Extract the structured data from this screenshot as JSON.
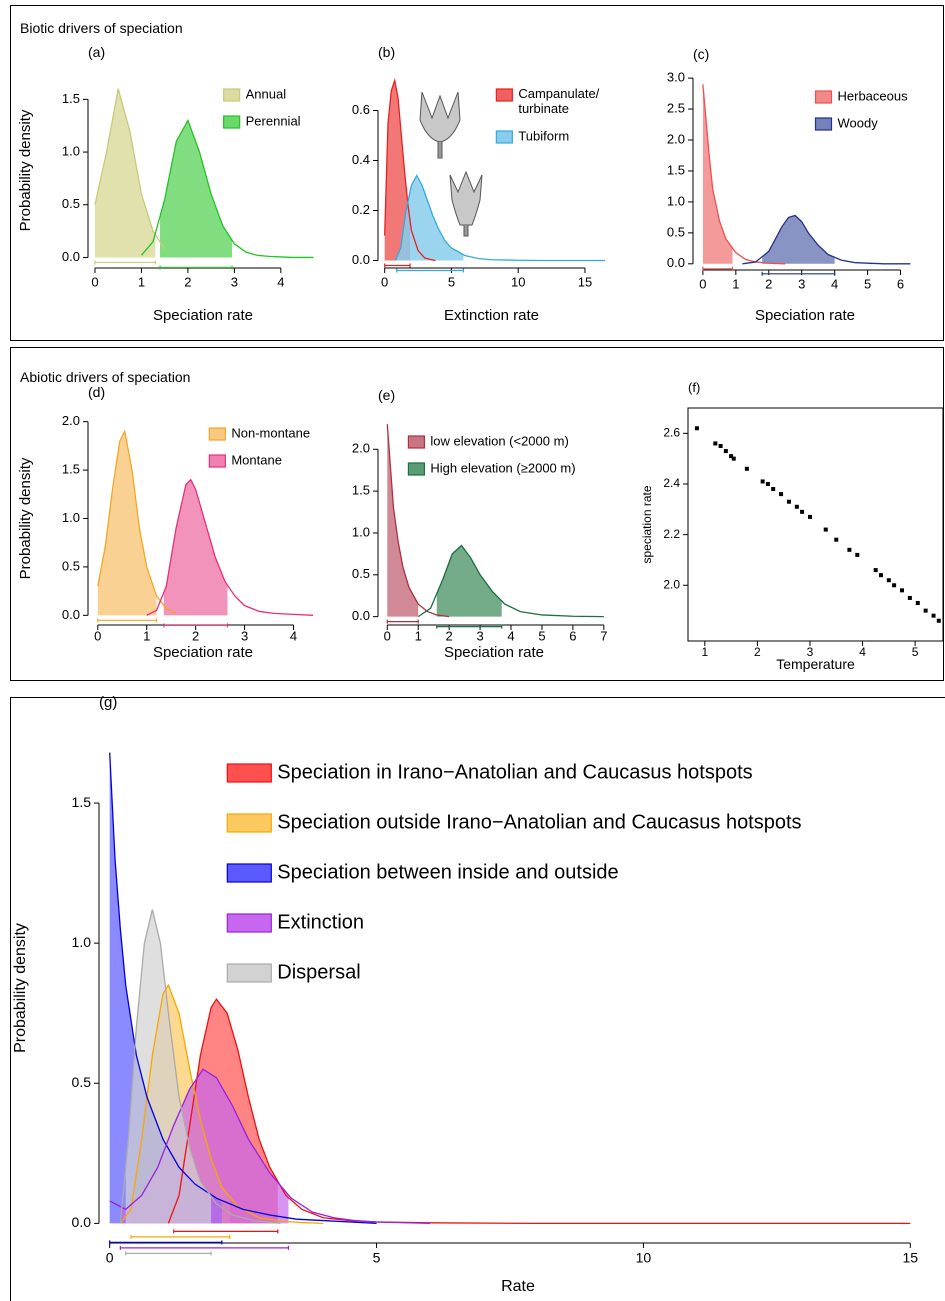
{
  "sections": [
    {
      "title": "Biotic drivers of speciation"
    },
    {
      "title": "Abiotic drivers of speciation"
    }
  ],
  "chart_data": [
    {
      "type": "density",
      "panel_label": "(a)",
      "xlabel": "Speciation rate",
      "ylabel": "Probability density",
      "xlim": [
        -0.15,
        4.8
      ],
      "ylim": [
        -0.1,
        1.75
      ],
      "xticks": [
        0,
        1,
        2,
        3,
        4
      ],
      "yticks": [
        {
          "value": 0,
          "label": "0.0"
        },
        0.5,
        {
          "value": 1,
          "label": "1.0"
        },
        1.5
      ],
      "legend": "top-right",
      "series": [
        {
          "name": "Annual",
          "color": "#c9c97a",
          "fill": "#dcdca0",
          "x": [
            0,
            0.25,
            0.5,
            0.75,
            1,
            1.25,
            1.5
          ],
          "values": [
            0.5,
            1,
            1.6,
            1.2,
            0.6,
            0.25,
            0.08
          ],
          "hpd": [
            0,
            1.3
          ]
        },
        {
          "name": "Perennial",
          "color": "#22c422",
          "fill": "#6ad86a",
          "x": [
            1,
            1.25,
            1.5,
            1.75,
            2,
            2.25,
            2.5,
            2.75,
            3,
            3.25,
            3.5,
            3.75,
            4,
            4.25,
            4.7
          ],
          "values": [
            0.02,
            0.15,
            0.55,
            1.1,
            1.3,
            1,
            0.6,
            0.3,
            0.13,
            0.05,
            0.02,
            0.01,
            0.005,
            0,
            0
          ],
          "hpd": [
            1.4,
            2.95
          ]
        }
      ]
    },
    {
      "type": "density",
      "panel_label": "(b)",
      "xlabel": "Extinction rate",
      "xlim": [
        -0.5,
        16.5
      ],
      "ylim": [
        -0.03,
        0.75
      ],
      "xticks": [
        0,
        5,
        10,
        15
      ],
      "yticks": [
        {
          "value": 0,
          "label": "0.0"
        },
        0.2,
        0.4,
        0.6
      ],
      "legend": "top-right",
      "series": [
        {
          "name": "Campanulate/ turbinate",
          "color": "#e82020",
          "fill": "#f06060",
          "x": [
            0,
            0.25,
            0.5,
            0.75,
            1,
            1.25,
            1.5,
            1.75,
            2,
            2.5,
            3,
            3.5,
            3.8
          ],
          "values": [
            0.1,
            0.55,
            0.68,
            0.72,
            0.65,
            0.5,
            0.35,
            0.22,
            0.12,
            0.04,
            0.01,
            0.003,
            0
          ],
          "hpd": [
            0,
            1.9
          ]
        },
        {
          "name": "Tubiform",
          "color": "#33aadd",
          "fill": "#8accec",
          "x": [
            0.8,
            1.2,
            1.6,
            2,
            2.4,
            2.8,
            3.2,
            3.6,
            4,
            4.5,
            5,
            6,
            7,
            8,
            10,
            12,
            16.5
          ],
          "values": [
            0,
            0.05,
            0.2,
            0.3,
            0.34,
            0.3,
            0.24,
            0.18,
            0.13,
            0.08,
            0.05,
            0.02,
            0.008,
            0.003,
            0.001,
            0,
            0
          ],
          "hpd": [
            0.9,
            5.9
          ]
        }
      ]
    },
    {
      "type": "density",
      "panel_label": "(c)",
      "xlabel": "Speciation rate",
      "xlim": [
        -0.3,
        6.5
      ],
      "ylim": [
        -0.1,
        3.05
      ],
      "xticks": [
        0,
        1,
        2,
        3,
        4,
        5,
        6
      ],
      "yticks": [
        {
          "value": 0,
          "label": "0.0"
        },
        0.5,
        {
          "value": 1,
          "label": "1.0"
        },
        1.5,
        {
          "value": 2,
          "label": "2.0"
        },
        2.5,
        {
          "value": 3,
          "label": "3.0"
        }
      ],
      "legend": "top-right",
      "series": [
        {
          "name": "Herbaceous",
          "color": "#ec5050",
          "fill": "#f28888",
          "x": [
            0,
            0.1,
            0.2,
            0.3,
            0.5,
            0.7,
            1,
            1.3,
            1.6,
            2,
            2.5
          ],
          "values": [
            2.9,
            2.3,
            1.7,
            1.2,
            0.7,
            0.4,
            0.18,
            0.07,
            0.03,
            0.01,
            0
          ],
          "hpd": [
            0,
            0.9
          ]
        },
        {
          "name": "Woody",
          "color": "#223388",
          "fill": "#7382ba",
          "x": [
            1.2,
            1.6,
            2,
            2.2,
            2.4,
            2.6,
            2.8,
            3,
            3.2,
            3.5,
            3.8,
            4.2,
            4.6,
            5,
            5.5,
            6.3
          ],
          "values": [
            0,
            0.03,
            0.2,
            0.4,
            0.6,
            0.75,
            0.78,
            0.68,
            0.5,
            0.3,
            0.15,
            0.06,
            0.02,
            0.01,
            0,
            0
          ],
          "hpd": [
            1.8,
            4
          ]
        }
      ]
    },
    {
      "type": "density",
      "panel_label": "(d)",
      "xlabel": "Speciation rate",
      "ylabel": "Probability density",
      "xlim": [
        -0.2,
        4.5
      ],
      "ylim": [
        -0.1,
        2.1
      ],
      "xticks": [
        0,
        1,
        2,
        3,
        4
      ],
      "yticks": [
        {
          "value": 0,
          "label": "0.0"
        },
        0.5,
        {
          "value": 1,
          "label": "1.0"
        },
        1.5,
        {
          "value": 2,
          "label": "2.0"
        }
      ],
      "legend": "top-right",
      "series": [
        {
          "name": "Non-montane",
          "color": "#f5a623",
          "fill": "#f8ca80",
          "x": [
            0,
            0.15,
            0.3,
            0.45,
            0.55,
            0.7,
            0.85,
            1,
            1.2,
            1.4,
            1.6
          ],
          "values": [
            0.3,
            0.7,
            1.3,
            1.8,
            1.9,
            1.5,
            0.9,
            0.5,
            0.2,
            0.07,
            0.02
          ],
          "hpd": [
            0,
            1.2
          ]
        },
        {
          "name": "Montane",
          "color": "#e8307a",
          "fill": "#f080b0",
          "x": [
            1,
            1.2,
            1.4,
            1.6,
            1.8,
            1.9,
            2,
            2.2,
            2.4,
            2.6,
            2.8,
            3,
            3.3,
            3.6,
            4,
            4.4
          ],
          "values": [
            0,
            0.05,
            0.3,
            0.9,
            1.35,
            1.4,
            1.3,
            0.95,
            0.6,
            0.35,
            0.2,
            0.1,
            0.04,
            0.02,
            0.01,
            0
          ],
          "hpd": [
            1.35,
            2.65
          ]
        }
      ]
    },
    {
      "type": "density",
      "panel_label": "(e)",
      "xlabel": "Speciation rate",
      "xlim": [
        -0.3,
        7.2
      ],
      "ylim": [
        -0.1,
        2.35
      ],
      "xticks": [
        0,
        1,
        2,
        3,
        4,
        5,
        6,
        7
      ],
      "yticks": [
        {
          "value": 0,
          "label": "0.0"
        },
        0.5,
        {
          "value": 1,
          "label": "1.0"
        },
        1.5,
        {
          "value": 2,
          "label": "2.0"
        }
      ],
      "legend": "top-right",
      "series": [
        {
          "name": "low elevation (<2000 m)",
          "color": "#b03040",
          "fill": "#c97482",
          "x": [
            0,
            0.1,
            0.2,
            0.35,
            0.5,
            0.7,
            1,
            1.3,
            1.6,
            2
          ],
          "values": [
            2.3,
            1.8,
            1.3,
            0.9,
            0.6,
            0.35,
            0.15,
            0.06,
            0.02,
            0
          ],
          "hpd": [
            0,
            1
          ]
        },
        {
          "name": "High elevation (≥2000 m)",
          "color": "#1e6e40",
          "fill": "#5c9c74",
          "x": [
            1,
            1.4,
            1.8,
            2.1,
            2.4,
            2.7,
            3,
            3.4,
            3.8,
            4.3,
            5,
            6,
            7
          ],
          "values": [
            0,
            0.1,
            0.45,
            0.75,
            0.85,
            0.7,
            0.5,
            0.3,
            0.15,
            0.06,
            0.02,
            0.005,
            0
          ],
          "hpd": [
            1.6,
            3.7
          ]
        }
      ]
    },
    {
      "type": "scatter",
      "panel_label": "(f)",
      "xlabel": "Temperature",
      "ylabel": "speciation rate",
      "box": true,
      "color": "#000000",
      "xlim": [
        0.68,
        5.53
      ],
      "ylim": [
        1.78,
        2.7
      ],
      "xticks": [
        1,
        2,
        3,
        4,
        5
      ],
      "yticks": [
        {
          "value": 2,
          "label": "2.0"
        },
        2.2,
        2.4,
        2.6
      ],
      "x": [
        0.85,
        1.2,
        1.3,
        1.4,
        1.5,
        1.55,
        1.8,
        2.1,
        2.2,
        2.3,
        2.45,
        2.6,
        2.75,
        2.85,
        3,
        3.3,
        3.5,
        3.75,
        3.9,
        4.25,
        4.35,
        4.5,
        4.6,
        4.75,
        4.9,
        5.05,
        5.2,
        5.35,
        5.45
      ],
      "values": [
        2.62,
        2.56,
        2.55,
        2.53,
        2.51,
        2.5,
        2.46,
        2.41,
        2.4,
        2.38,
        2.36,
        2.33,
        2.31,
        2.29,
        2.27,
        2.22,
        2.18,
        2.14,
        2.12,
        2.06,
        2.04,
        2.02,
        2,
        1.98,
        1.95,
        1.93,
        1.9,
        1.88,
        1.86
      ]
    },
    {
      "type": "density",
      "panel_label": "(g)",
      "xlabel": "Rate",
      "ylabel": "Probability density",
      "xlim": [
        -0.2,
        15.5
      ],
      "ylim": [
        -0.07,
        1.75
      ],
      "xticks": [
        0,
        5,
        10,
        15
      ],
      "yticks": [
        {
          "value": 0,
          "label": "0.0"
        },
        0.5,
        {
          "value": 1,
          "label": "1.0"
        },
        1.5
      ],
      "legend": "top",
      "series": [
        {
          "name": "Speciation in Irano−Anatolian and Caucasus hotspots",
          "color": "#ee1111",
          "fill": "#ff5050",
          "x": [
            1.1,
            1.3,
            1.5,
            1.7,
            1.9,
            2,
            2.2,
            2.4,
            2.6,
            2.8,
            3,
            3.3,
            3.6,
            4,
            4.5,
            5,
            6,
            8,
            15
          ],
          "values": [
            0,
            0.1,
            0.35,
            0.6,
            0.77,
            0.8,
            0.75,
            0.62,
            0.45,
            0.3,
            0.2,
            0.1,
            0.05,
            0.02,
            0.01,
            0.005,
            0.002,
            0,
            0
          ],
          "hpd": [
            1.2,
            3.15
          ]
        },
        {
          "name": "Speciation outside Irano−Anatolian and Caucasus hotspots",
          "color": "#f7a800",
          "fill": "#fcc860",
          "x": [
            0.2,
            0.4,
            0.6,
            0.8,
            1,
            1.1,
            1.3,
            1.5,
            1.7,
            1.9,
            2.1,
            2.4,
            2.8,
            3.2,
            3.6,
            4
          ],
          "values": [
            0,
            0.05,
            0.3,
            0.6,
            0.82,
            0.85,
            0.75,
            0.55,
            0.37,
            0.23,
            0.13,
            0.06,
            0.02,
            0.008,
            0.003,
            0
          ],
          "hpd": [
            0.4,
            2.25
          ]
        },
        {
          "name": "Speciation between inside and outside",
          "color": "#0000dd",
          "fill": "#5a5aff",
          "x": [
            0,
            0.1,
            0.2,
            0.3,
            0.5,
            0.7,
            1,
            1.3,
            1.6,
            2,
            2.5,
            3,
            3.5,
            4,
            5
          ],
          "values": [
            1.68,
            1.3,
            1.05,
            0.85,
            0.6,
            0.45,
            0.3,
            0.2,
            0.14,
            0.09,
            0.05,
            0.03,
            0.015,
            0.01,
            0
          ],
          "hpd": [
            0,
            2.1
          ]
        },
        {
          "name": "Extinction",
          "color": "#9922dd",
          "fill": "#c766ee",
          "x": [
            0,
            0.3,
            0.6,
            0.9,
            1.2,
            1.5,
            1.75,
            2,
            2.3,
            2.6,
            3,
            3.4,
            3.8,
            4.2,
            4.6,
            5,
            6
          ],
          "values": [
            0.08,
            0.05,
            0.1,
            0.2,
            0.35,
            0.48,
            0.55,
            0.52,
            0.42,
            0.3,
            0.18,
            0.09,
            0.04,
            0.02,
            0.01,
            0.005,
            0
          ],
          "hpd": [
            0.2,
            3.35
          ]
        },
        {
          "name": "Dispersal",
          "color": "#aaaaaa",
          "fill": "#d2d2d2",
          "x": [
            0.2,
            0.35,
            0.5,
            0.65,
            0.8,
            0.95,
            1.1,
            1.3,
            1.5,
            1.7,
            2,
            2.3,
            2.7,
            3.2
          ],
          "values": [
            0,
            0.3,
            0.7,
            1,
            1.12,
            1,
            0.75,
            0.45,
            0.27,
            0.15,
            0.07,
            0.03,
            0.01,
            0
          ],
          "hpd": [
            0.3,
            1.9
          ]
        }
      ]
    }
  ]
}
